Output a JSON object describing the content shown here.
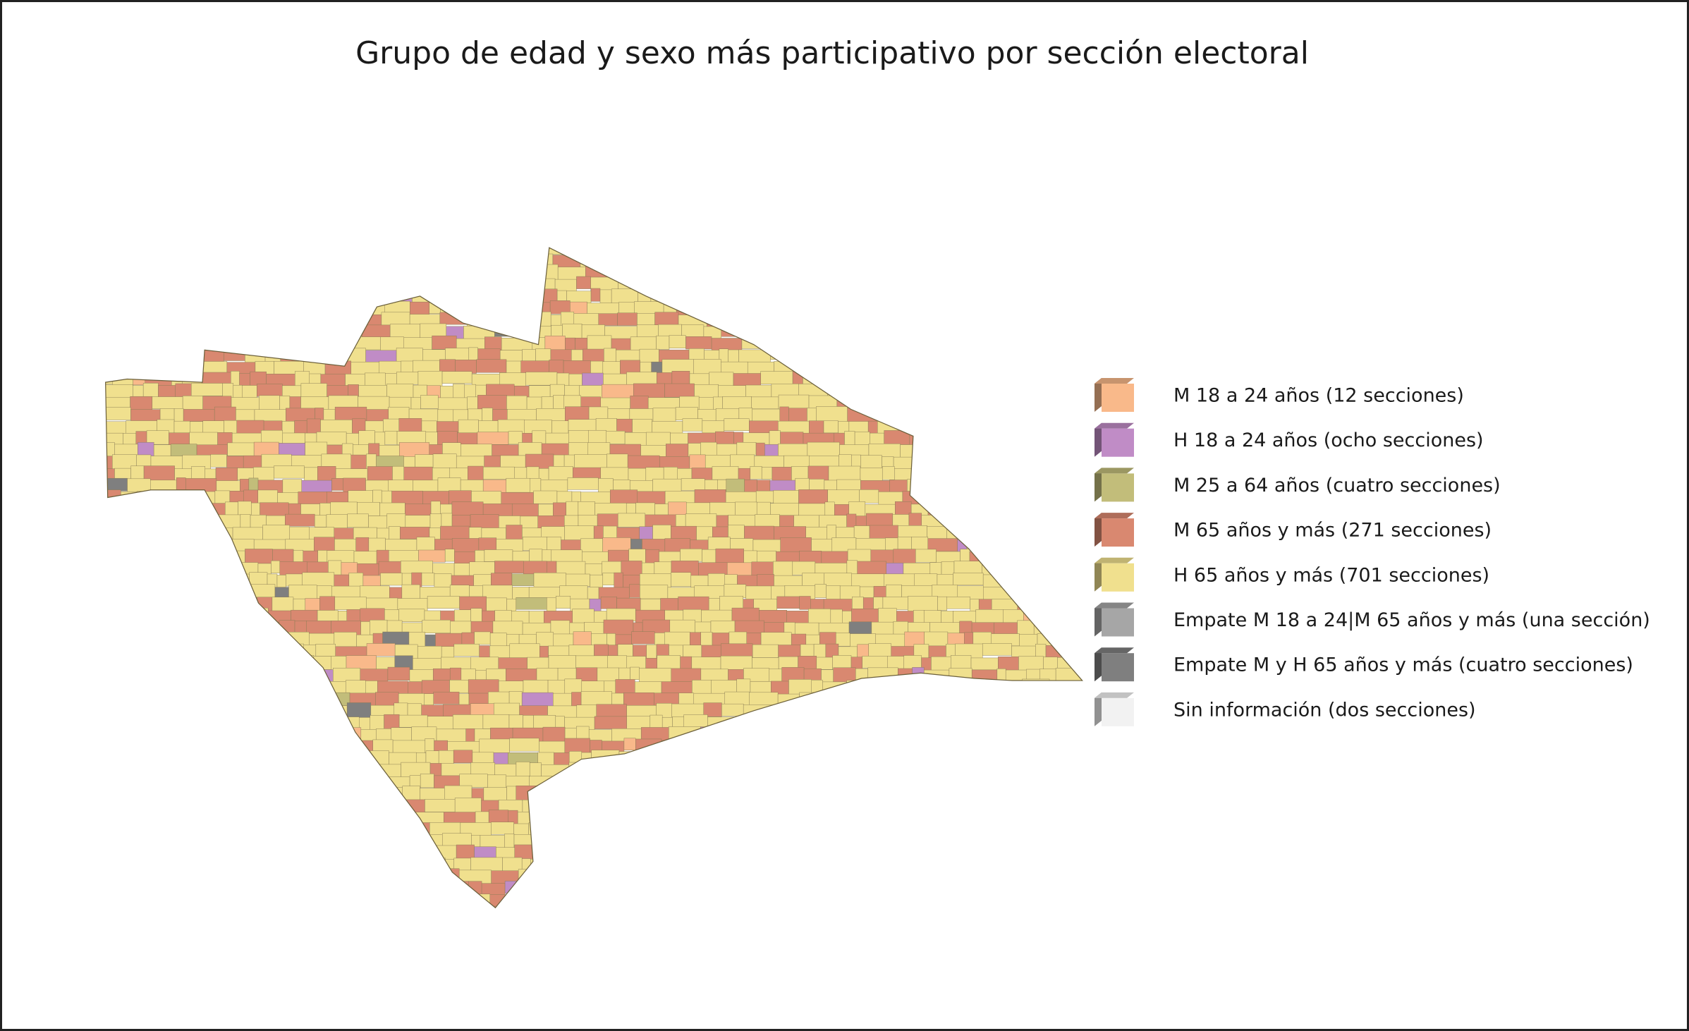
{
  "title": "Grupo de edad y sexo más participativo por sección electoral",
  "legend": {
    "items": [
      {
        "label": "M 18 a 24 años (12 secciones)",
        "color": "#f9b98a"
      },
      {
        "label": "H 18 a 24 años (ocho secciones)",
        "color": "#c08cc6"
      },
      {
        "label": "M 25 a 64 años (cuatro secciones)",
        "color": "#c2bd7a"
      },
      {
        "label": "M 65 años y más (271 secciones)",
        "color": "#d98870"
      },
      {
        "label": "H 65 años y más (701 secciones)",
        "color": "#f0e08e"
      },
      {
        "label": "Empate M 18 a 24|M 65 años y más (una sección)",
        "color": "#a6a6a6"
      },
      {
        "label": "Empate M y H 65 años y más (cuatro secciones)",
        "color": "#7f7f7f"
      },
      {
        "label": "Sin información (dos secciones)",
        "color": "#f2f2f2"
      }
    ]
  }
}
